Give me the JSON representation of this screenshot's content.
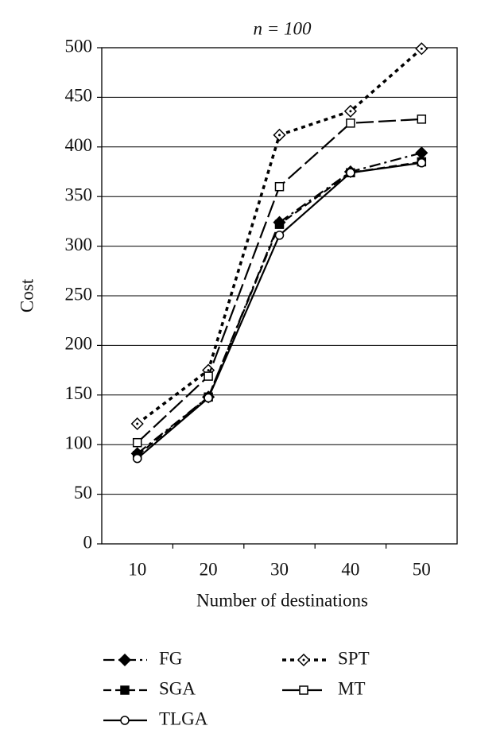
{
  "chart_data": {
    "type": "line",
    "title": "n = 100",
    "x_label": "Number of destinations",
    "y_label": "Cost",
    "categories": [
      "10",
      "20",
      "30",
      "40",
      "50"
    ],
    "series": [
      {
        "name": "FG",
        "color": "#000000",
        "marker": "diamond-filled",
        "dash": "14 5 3 5",
        "values": [
          91,
          148,
          324,
          375,
          394
        ]
      },
      {
        "name": "SGA",
        "color": "#000000",
        "marker": "square-filled",
        "dash": "10 5",
        "values": [
          89,
          148,
          322,
          374,
          385
        ]
      },
      {
        "name": "TLGA",
        "color": "#000000",
        "marker": "circle-open",
        "dash": "",
        "values": [
          86,
          147,
          311,
          374,
          384
        ]
      },
      {
        "name": "SPT",
        "color": "#000000",
        "marker": "diamond-open",
        "dash": "5 5",
        "values": [
          121,
          175,
          412,
          436,
          499
        ]
      },
      {
        "name": "MT",
        "color": "#000000",
        "marker": "square-open",
        "dash": "22 6",
        "values": [
          102,
          169,
          360,
          424,
          428
        ]
      }
    ],
    "ylim": [
      0,
      500
    ],
    "yticks": [
      0,
      50,
      100,
      150,
      200,
      250,
      300,
      350,
      400,
      450,
      500
    ],
    "grid": true
  }
}
